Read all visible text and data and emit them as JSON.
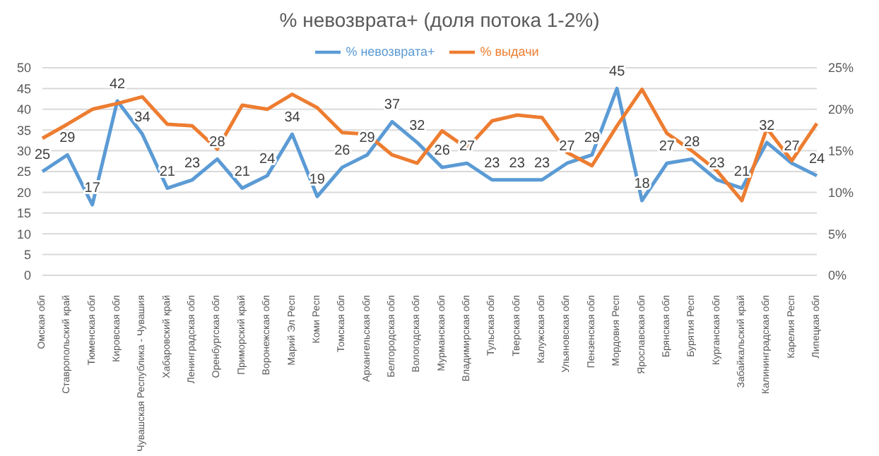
{
  "chart_data": {
    "type": "line",
    "title": "% невозврата+ (доля потока 1-2%)",
    "categories": [
      "Омская обл",
      "Ставропольский край",
      "Тюменская обл",
      "Кировская обл",
      "Чувашская Республика - Чувашия",
      "Хабаровский край",
      "Ленинградская обл",
      "Оренбургская обл",
      "Приморский край",
      "Воронежская обл",
      "Марий Эл Респ",
      "Коми Респ",
      "Томская обл",
      "Архангельская обл",
      "Белгородская обл",
      "Вологодская обл",
      "Мурманская обл",
      "Владимирская обл",
      "Тульская обл",
      "Тверская обл",
      "Калужская обл",
      "Ульяновская обл",
      "Пензенская обл",
      "Мордовия Респ",
      "Ярославская обл",
      "Брянская обл",
      "Бурятия Респ",
      "Курганская обл",
      "Забайкальский край",
      "Калининградская обл",
      "Карелия Респ",
      "Липецкая обл"
    ],
    "series": [
      {
        "name": "% невозврата+",
        "color": "#5b9bd5",
        "values": [
          25,
          29,
          17,
          42,
          34,
          21,
          23,
          28,
          21,
          24,
          34,
          19,
          26,
          29,
          37,
          32,
          26,
          27,
          23,
          23,
          23,
          27,
          29,
          45,
          18,
          27,
          28,
          23,
          21,
          32,
          27,
          24
        ],
        "value_labels": [
          "25",
          "29",
          "17",
          "42",
          "34",
          "21",
          "23",
          "28",
          "21",
          "24",
          "34",
          "19",
          "26",
          "29",
          "37",
          "32",
          "26",
          "27",
          "23",
          "23",
          "23",
          "27",
          "29",
          "45",
          "18",
          "27",
          "28",
          "23",
          "21",
          "32",
          "27",
          "24"
        ]
      },
      {
        "name": "% выдачи",
        "color": "#ed7d31",
        "axis": "y2",
        "values": [
          16.5,
          18.2,
          20,
          20.7,
          21.5,
          18.2,
          18,
          15.2,
          20.5,
          20,
          21.8,
          20.2,
          17.2,
          17,
          14.5,
          13.5,
          17.4,
          15.3,
          18.6,
          19.3,
          19,
          14.8,
          13.2,
          18,
          22.4,
          17.1,
          15,
          12.6,
          9,
          17.7,
          13.8,
          18.3
        ]
      }
    ],
    "ylim": [
      0,
      50
    ],
    "yticks": [
      0,
      5,
      10,
      15,
      20,
      25,
      30,
      35,
      40,
      45,
      50
    ],
    "y2lim": [
      0,
      25
    ],
    "y2ticks": [
      {
        "value": 0,
        "label": "0%"
      },
      {
        "value": 5,
        "label": "5%"
      },
      {
        "value": 10,
        "label": "10%"
      },
      {
        "value": 15,
        "label": "15%"
      },
      {
        "value": 20,
        "label": "20%"
      },
      {
        "value": 25,
        "label": "25%"
      }
    ],
    "grid": "y",
    "legend": "top",
    "marker": "none",
    "line_style": "solid"
  }
}
